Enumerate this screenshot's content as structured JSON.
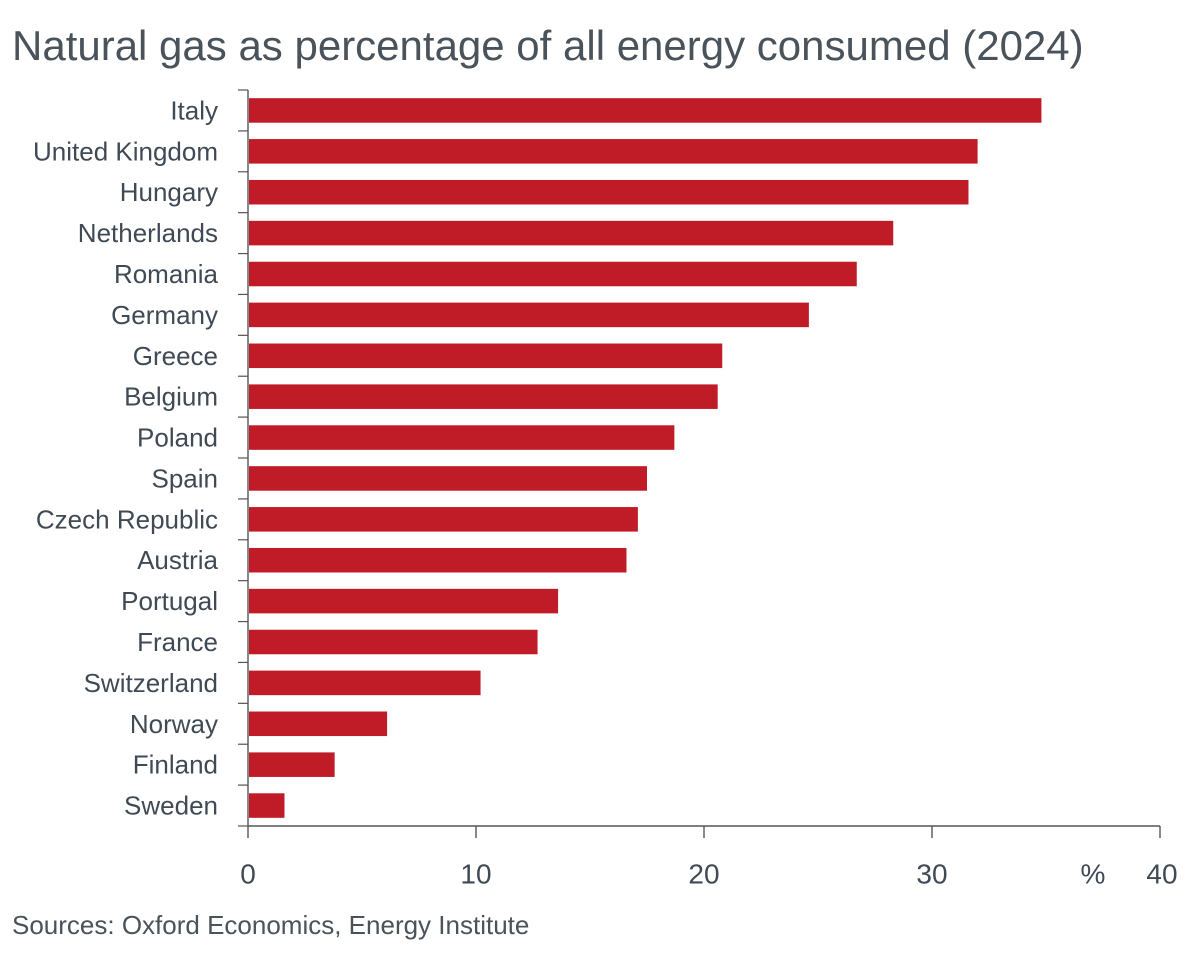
{
  "chart_data": {
    "type": "bar",
    "orientation": "horizontal",
    "title": "Natural gas as percentage of all energy consumed (2024)",
    "categories": [
      "Italy",
      "United Kingdom",
      "Hungary",
      "Netherlands",
      "Romania",
      "Germany",
      "Greece",
      "Belgium",
      "Poland",
      "Spain",
      "Czech Republic",
      "Austria",
      "Portugal",
      "France",
      "Switzerland",
      "Norway",
      "Finland",
      "Sweden"
    ],
    "values": [
      34.8,
      32.0,
      31.6,
      28.3,
      26.7,
      24.6,
      20.8,
      20.6,
      18.7,
      17.5,
      17.1,
      16.6,
      13.6,
      12.7,
      10.2,
      6.1,
      3.8,
      1.6
    ],
    "xlabel": "%",
    "ylabel": "",
    "xlim": [
      0,
      40
    ],
    "xticks": [
      "0",
      "10",
      "20",
      "30",
      "40"
    ],
    "bar_color": "#c01c28",
    "axis_color": "#555555",
    "source": "Sources: Oxford Economics, Energy Institute"
  }
}
